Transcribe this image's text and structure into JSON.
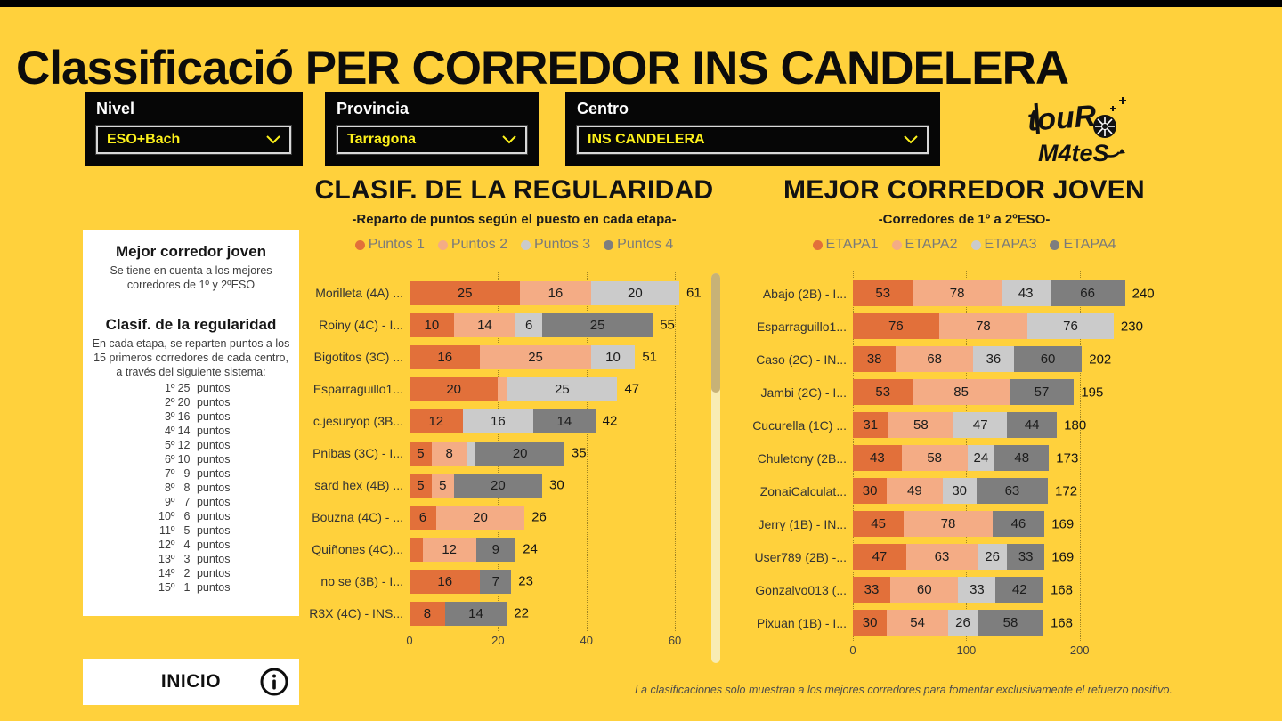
{
  "page": {
    "title": "Classificació PER CORREDOR INS CANDELERA",
    "footer_note": "La clasificaciones solo muestran a los mejores corredores para fomentar exclusivamente el refuerzo positivo.",
    "background_color": "#FFD13C",
    "accent_yellow": "#FDF11B"
  },
  "filters": {
    "nivel": {
      "label": "Nivel",
      "value": "ESO+Bach"
    },
    "provincia": {
      "label": "Provincia",
      "value": "Tarragona"
    },
    "centro": {
      "label": "Centro",
      "value": "INS CANDELERA"
    }
  },
  "logo": {
    "line1": "touR",
    "line2": "M4teS"
  },
  "info_panel": {
    "section1_title": "Mejor corredor joven",
    "section1_body": "Se tiene en cuenta a los mejores corredores de 1º y 2ºESO",
    "section2_title": "Clasif. de la regularidad",
    "section2_body": "En cada etapa, se reparten puntos a los 15 primeros corredores de cada centro, a través del siguiente sistema:",
    "unit_word": "puntos",
    "points_list": [
      {
        "pos": "1º",
        "value": "25"
      },
      {
        "pos": "2º",
        "value": "20"
      },
      {
        "pos": "3º",
        "value": "16"
      },
      {
        "pos": "4º",
        "value": "14"
      },
      {
        "pos": "5º",
        "value": "12"
      },
      {
        "pos": "6º",
        "value": "10"
      },
      {
        "pos": "7º",
        "value": "9"
      },
      {
        "pos": "8º",
        "value": "8"
      },
      {
        "pos": "9º",
        "value": "7"
      },
      {
        "pos": "10º",
        "value": "6"
      },
      {
        "pos": "11º",
        "value": "5"
      },
      {
        "pos": "12º",
        "value": "4"
      },
      {
        "pos": "13º",
        "value": "3"
      },
      {
        "pos": "14º",
        "value": "2"
      },
      {
        "pos": "15º",
        "value": "1"
      }
    ]
  },
  "inicio": {
    "label": "INICIO"
  },
  "chart_data": [
    {
      "type": "bar",
      "orientation": "horizontal",
      "stacked": true,
      "title": "CLASIF. DE LA REGULARIDAD",
      "subtitle": "-Reparto de puntos según el puesto en cada etapa-",
      "legend": [
        "Puntos 1",
        "Puntos 2",
        "Puntos 3",
        "Puntos 4"
      ],
      "series_colors": [
        "#E2703A",
        "#F4AC85",
        "#CBCBCB",
        "#7E7E7E"
      ],
      "xlim": [
        0,
        62
      ],
      "ticks": [
        0,
        20,
        40,
        60
      ],
      "grid": true,
      "legend_position": "top",
      "bars": [
        {
          "label": "Morilleta (4A) ...",
          "total": 61,
          "segments": [
            [
              0,
              25
            ],
            [
              1,
              16
            ],
            [
              2,
              20
            ]
          ]
        },
        {
          "label": "Roiny (4C) - I...",
          "total": 55,
          "segments": [
            [
              0,
              10
            ],
            [
              1,
              14
            ],
            [
              2,
              6
            ],
            [
              3,
              25
            ]
          ]
        },
        {
          "label": "Bigotitos (3C) ...",
          "total": 51,
          "segments": [
            [
              0,
              16
            ],
            [
              1,
              25
            ],
            [
              2,
              10
            ]
          ]
        },
        {
          "label": "Esparraguillo1...",
          "total": 47,
          "segments": [
            [
              0,
              20
            ],
            [
              1,
              2
            ],
            [
              2,
              25
            ]
          ]
        },
        {
          "label": "c.jesuryop (3B...",
          "total": 42,
          "segments": [
            [
              0,
              12
            ],
            [
              2,
              16
            ],
            [
              3,
              14
            ]
          ]
        },
        {
          "label": "Pnibas (3C) - I...",
          "total": 35,
          "segments": [
            [
              0,
              5
            ],
            [
              1,
              8
            ],
            [
              2,
              2
            ],
            [
              3,
              20
            ]
          ]
        },
        {
          "label": "sard hex (4B) ...",
          "total": 30,
          "segments": [
            [
              0,
              5
            ],
            [
              1,
              5
            ],
            [
              3,
              20
            ]
          ]
        },
        {
          "label": "Bouzna (4C) - ...",
          "total": 26,
          "segments": [
            [
              0,
              6
            ],
            [
              1,
              20
            ]
          ]
        },
        {
          "label": "Quiñones (4C)...",
          "total": 24,
          "segments": [
            [
              0,
              3
            ],
            [
              1,
              12
            ],
            [
              3,
              9
            ]
          ]
        },
        {
          "label": "no se (3B) - I...",
          "total": 23,
          "segments": [
            [
              0,
              16
            ],
            [
              3,
              7
            ]
          ]
        },
        {
          "label": "R3X (4C) - INS...",
          "total": 22,
          "segments": [
            [
              0,
              8
            ],
            [
              3,
              14
            ]
          ]
        }
      ]
    },
    {
      "type": "bar",
      "orientation": "horizontal",
      "stacked": true,
      "title": "MEJOR CORREDOR JOVEN",
      "subtitle": "-Corredores de 1º a 2ºESO-",
      "legend": [
        "ETAPA1",
        "ETAPA2",
        "ETAPA3",
        "ETAPA4"
      ],
      "series_colors": [
        "#E2703A",
        "#F4AC85",
        "#CBCBCB",
        "#7E7E7E"
      ],
      "xlim": [
        0,
        245
      ],
      "ticks": [
        0,
        100,
        200
      ],
      "grid": true,
      "legend_position": "top",
      "bars": [
        {
          "label": "Abajo (2B) - I...",
          "total": 240,
          "segments": [
            [
              0,
              53
            ],
            [
              1,
              78
            ],
            [
              2,
              43
            ],
            [
              3,
              66
            ]
          ]
        },
        {
          "label": "Esparraguillo1...",
          "total": 230,
          "segments": [
            [
              0,
              76
            ],
            [
              1,
              78
            ],
            [
              2,
              76
            ]
          ]
        },
        {
          "label": "Caso (2C) - IN...",
          "total": 202,
          "segments": [
            [
              0,
              38
            ],
            [
              1,
              68
            ],
            [
              2,
              36
            ],
            [
              3,
              60
            ]
          ]
        },
        {
          "label": "Jambi (2C) - I...",
          "total": 195,
          "segments": [
            [
              0,
              53
            ],
            [
              1,
              85
            ],
            [
              3,
              57
            ]
          ]
        },
        {
          "label": "Cucurella (1C) ...",
          "total": 180,
          "segments": [
            [
              0,
              31
            ],
            [
              1,
              58
            ],
            [
              2,
              47
            ],
            [
              3,
              44
            ]
          ]
        },
        {
          "label": "Chuletony (2B...",
          "total": 173,
          "segments": [
            [
              0,
              43
            ],
            [
              1,
              58
            ],
            [
              2,
              24
            ],
            [
              3,
              48
            ]
          ]
        },
        {
          "label": "ZonaiCalculat...",
          "total": 172,
          "segments": [
            [
              0,
              30
            ],
            [
              1,
              49
            ],
            [
              2,
              30
            ],
            [
              3,
              63
            ]
          ]
        },
        {
          "label": "Jerry (1B) - IN...",
          "total": 169,
          "segments": [
            [
              0,
              45
            ],
            [
              1,
              78
            ],
            [
              3,
              46
            ]
          ]
        },
        {
          "label": "User789 (2B) -...",
          "total": 169,
          "segments": [
            [
              0,
              47
            ],
            [
              1,
              63
            ],
            [
              2,
              26
            ],
            [
              3,
              33
            ]
          ]
        },
        {
          "label": "Gonzalvo013 (...",
          "total": 168,
          "segments": [
            [
              0,
              33
            ],
            [
              1,
              60
            ],
            [
              2,
              33
            ],
            [
              3,
              42
            ]
          ]
        },
        {
          "label": "Pixuan (1B) - I...",
          "total": 168,
          "segments": [
            [
              0,
              30
            ],
            [
              1,
              54
            ],
            [
              2,
              26
            ],
            [
              3,
              58
            ]
          ]
        }
      ]
    }
  ]
}
